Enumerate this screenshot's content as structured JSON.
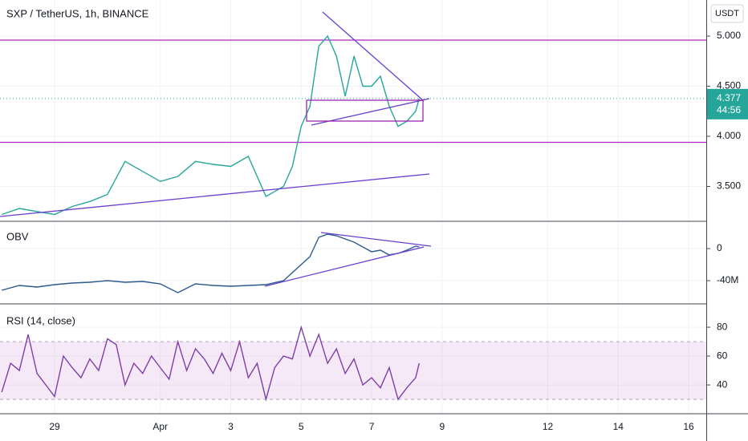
{
  "chart_data": [
    {
      "type": "line",
      "title": "SXP / TetherUS, 1h, BINANCE",
      "axis_unit": "USDT",
      "color": "#26a69a",
      "x": [
        -0.5,
        0,
        0.5,
        1,
        1.5,
        2,
        2.5,
        3,
        3.5,
        4,
        4.5,
        5,
        5.5,
        6,
        6.5,
        7,
        7.25,
        7.5,
        7.75,
        8,
        8.25,
        8.5,
        8.75,
        9,
        9.25,
        9.5,
        9.75,
        10,
        10.25,
        10.5,
        10.75,
        11,
        11.25,
        11.35
      ],
      "values": [
        3.22,
        3.28,
        3.25,
        3.22,
        3.3,
        3.35,
        3.42,
        3.75,
        3.65,
        3.55,
        3.6,
        3.75,
        3.72,
        3.7,
        3.8,
        3.4,
        3.45,
        3.5,
        3.7,
        4.1,
        4.3,
        4.9,
        5.0,
        4.8,
        4.4,
        4.8,
        4.5,
        4.5,
        4.6,
        4.3,
        4.1,
        4.15,
        4.25,
        4.377
      ],
      "xlim": [
        -0.55,
        19.5
      ],
      "ylim": [
        3.16,
        5.36
      ],
      "yticks": [
        {
          "value": 5,
          "label": "5.000"
        },
        {
          "value": 4.5,
          "label": "4.500"
        },
        {
          "value": 4,
          "label": "4.000"
        },
        {
          "value": 3.5,
          "label": "3.500"
        }
      ],
      "hlines": [
        4.96,
        3.94
      ],
      "last_price": {
        "value": 4.377,
        "label": "4.377"
      },
      "countdown": "44:56",
      "grid": true
    },
    {
      "type": "line",
      "title": "OBV",
      "color": "#2a5a8c",
      "x": [
        -0.5,
        0,
        0.5,
        1,
        1.5,
        2,
        2.5,
        3,
        3.5,
        4,
        4.5,
        5,
        5.5,
        6,
        6.5,
        7,
        7.5,
        8,
        8.25,
        8.5,
        8.75,
        9,
        9.25,
        9.5,
        9.75,
        10,
        10.25,
        10.5,
        10.75,
        11,
        11.25,
        11.35
      ],
      "values": [
        -52000000,
        -46000000,
        -48000000,
        -45000000,
        -43000000,
        -42000000,
        -40000000,
        -42000000,
        -41000000,
        -44000000,
        -55000000,
        -44000000,
        -46000000,
        -47000000,
        -46000000,
        -45000000,
        -40000000,
        -20000000,
        -10000000,
        14000000,
        18000000,
        16000000,
        12000000,
        8000000,
        2000000,
        -4000000,
        -2000000,
        -8000000,
        -6000000,
        -2000000,
        3000000,
        2000000
      ],
      "xlim": [
        -0.55,
        19.5
      ],
      "ylim": [
        -68000000,
        33000000
      ],
      "yticks": [
        0,
        {
          "value": -40000000,
          "label": "-40M"
        }
      ],
      "grid": true
    },
    {
      "type": "line",
      "title": "RSI (14, close)",
      "color": "#7e3fa8",
      "x": [
        -0.5,
        -0.25,
        0,
        0.25,
        0.5,
        0.75,
        1,
        1.25,
        1.5,
        1.75,
        2,
        2.25,
        2.5,
        2.75,
        3,
        3.25,
        3.5,
        3.75,
        4,
        4.25,
        4.5,
        4.75,
        5,
        5.25,
        5.5,
        5.75,
        6,
        6.25,
        6.5,
        6.75,
        7,
        7.25,
        7.5,
        7.75,
        8,
        8.25,
        8.5,
        8.75,
        9,
        9.25,
        9.5,
        9.75,
        10,
        10.25,
        10.5,
        10.75,
        11,
        11.25,
        11.35
      ],
      "values": [
        35,
        55,
        50,
        75,
        48,
        40,
        32,
        60,
        52,
        45,
        58,
        50,
        72,
        68,
        40,
        55,
        48,
        60,
        52,
        44,
        70,
        50,
        65,
        58,
        48,
        62,
        50,
        70,
        45,
        55,
        30,
        52,
        60,
        58,
        80,
        60,
        75,
        55,
        65,
        48,
        58,
        40,
        45,
        38,
        52,
        30,
        38,
        45,
        55
      ],
      "xlim": [
        -0.55,
        19.5
      ],
      "ylim": [
        20.6,
        95.6
      ],
      "yticks": [
        80,
        60,
        40
      ],
      "band": [
        30,
        70
      ],
      "grid": true,
      "xticks": [
        {
          "value": 1,
          "label": "29"
        },
        {
          "value": 4,
          "label": "Apr"
        },
        {
          "value": 6,
          "label": "3"
        },
        {
          "value": 8,
          "label": "5"
        },
        {
          "value": 10,
          "label": "7"
        },
        {
          "value": 12,
          "label": "9"
        },
        {
          "value": 15,
          "label": "12"
        },
        {
          "value": 17,
          "label": "14"
        },
        {
          "value": 19,
          "label": "16"
        }
      ]
    }
  ]
}
